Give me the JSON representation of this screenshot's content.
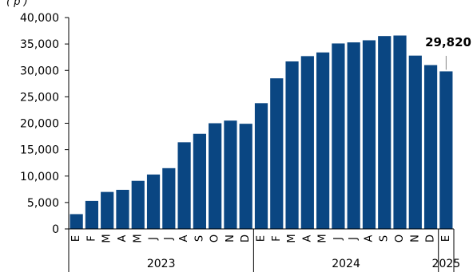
{
  "top_note": "(                                    p   )",
  "chart_data": {
    "type": "bar",
    "title": "",
    "xlabel": "",
    "ylabel": "",
    "ylim": [
      0,
      40000
    ],
    "yticks": [
      0,
      5000,
      10000,
      15000,
      20000,
      25000,
      30000,
      35000,
      40000
    ],
    "ytick_labels": [
      "0",
      "5,000",
      "10,000",
      "15,000",
      "20,000",
      "25,000",
      "30,000",
      "35,000",
      "40,000"
    ],
    "grid": false,
    "bar_color": "#0a4682",
    "categories": [
      "E",
      "F",
      "M",
      "A",
      "M",
      "J",
      "J",
      "A",
      "S",
      "O",
      "N",
      "D",
      "E",
      "F",
      "M",
      "A",
      "M",
      "J",
      "J",
      "A",
      "S",
      "O",
      "N",
      "D",
      "E"
    ],
    "values": [
      2800,
      5300,
      7000,
      7400,
      9100,
      10300,
      11500,
      16400,
      18000,
      20000,
      20500,
      19900,
      23800,
      28500,
      31700,
      32700,
      33400,
      35100,
      35300,
      35700,
      36500,
      36600,
      32800,
      31000,
      29820
    ],
    "years": [
      {
        "label": "2023",
        "start": 0,
        "end": 11
      },
      {
        "label": "2024",
        "start": 12,
        "end": 23
      },
      {
        "label": "2025",
        "start": 24,
        "end": 24
      }
    ],
    "annotations": [
      {
        "index": 24,
        "text": "29,820"
      }
    ]
  }
}
